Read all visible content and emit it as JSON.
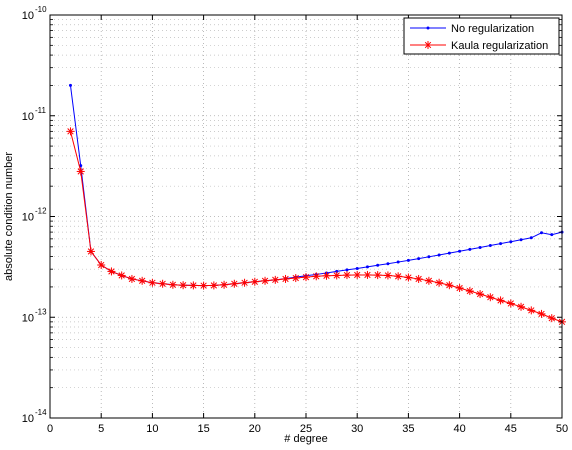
{
  "chart_data": {
    "type": "line",
    "xlabel": "# degree",
    "ylabel": "absolute condition number",
    "xlim": [
      0,
      50
    ],
    "ylim": [
      1e-14,
      1e-10
    ],
    "yscale": "log",
    "grid": true,
    "legend_position": "top-right",
    "x_ticks": [
      "0",
      "5",
      "10",
      "15",
      "20",
      "25",
      "30",
      "35",
      "40",
      "45",
      "50"
    ],
    "y_ticks": [
      {
        "base": "10",
        "exp": "-14"
      },
      {
        "base": "10",
        "exp": "-13"
      },
      {
        "base": "10",
        "exp": "-12"
      },
      {
        "base": "10",
        "exp": "-11"
      },
      {
        "base": "10",
        "exp": "-10"
      }
    ],
    "x": [
      2,
      3,
      4,
      5,
      6,
      7,
      8,
      9,
      10,
      11,
      12,
      13,
      14,
      15,
      16,
      17,
      18,
      19,
      20,
      21,
      22,
      23,
      24,
      25,
      26,
      27,
      28,
      29,
      30,
      31,
      32,
      33,
      34,
      35,
      36,
      37,
      38,
      39,
      40,
      41,
      42,
      43,
      44,
      45,
      46,
      47,
      48,
      49,
      50
    ],
    "series": [
      {
        "name": "No regularization",
        "color": "#0000ff",
        "marker": "dot",
        "values": [
          2e-11,
          3.2e-12,
          4.5e-13,
          3.3e-13,
          2.85e-13,
          2.6e-13,
          2.4e-13,
          2.3e-13,
          2.2e-13,
          2.15e-13,
          2.1e-13,
          2.08e-13,
          2.07e-13,
          2.06e-13,
          2.07e-13,
          2.1e-13,
          2.15e-13,
          2.2e-13,
          2.25e-13,
          2.3e-13,
          2.35e-13,
          2.42e-13,
          2.5e-13,
          2.58e-13,
          2.66e-13,
          2.75e-13,
          2.85e-13,
          2.95e-13,
          3.05e-13,
          3.16e-13,
          3.28e-13,
          3.4e-13,
          3.53e-13,
          3.67e-13,
          3.82e-13,
          3.98e-13,
          4.15e-13,
          4.33e-13,
          4.52e-13,
          4.72e-13,
          4.93e-13,
          5.15e-13,
          5.38e-13,
          5.62e-13,
          5.88e-13,
          6.15e-13,
          6.9e-13,
          6.6e-13,
          7e-13
        ]
      },
      {
        "name": "Kaula regularization",
        "color": "#ff0000",
        "marker": "star",
        "values": [
          7e-12,
          2.8e-12,
          4.5e-13,
          3.3e-13,
          2.85e-13,
          2.6e-13,
          2.4e-13,
          2.3e-13,
          2.2e-13,
          2.15e-13,
          2.1e-13,
          2.08e-13,
          2.07e-13,
          2.06e-13,
          2.07e-13,
          2.1e-13,
          2.15e-13,
          2.2e-13,
          2.25e-13,
          2.3e-13,
          2.35e-13,
          2.4e-13,
          2.45e-13,
          2.5e-13,
          2.55e-13,
          2.58e-13,
          2.6e-13,
          2.62e-13,
          2.63e-13,
          2.63e-13,
          2.62e-13,
          2.6e-13,
          2.55e-13,
          2.48e-13,
          2.4e-13,
          2.3e-13,
          2.2e-13,
          2.08e-13,
          1.95e-13,
          1.82e-13,
          1.7e-13,
          1.58e-13,
          1.47e-13,
          1.37e-13,
          1.27e-13,
          1.17e-13,
          1.08e-13,
          9.8e-14,
          9e-14
        ]
      }
    ]
  }
}
